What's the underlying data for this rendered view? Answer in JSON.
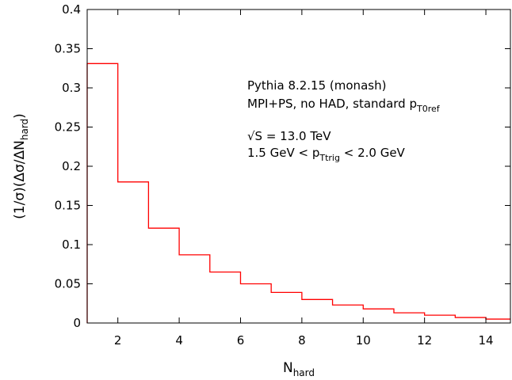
{
  "chart_data": {
    "type": "step",
    "xlabel": {
      "main": "N",
      "sub": "hard"
    },
    "ylabel": {
      "pre": "(1/σ)(Δσ/ΔN",
      "sub": "hard",
      "post": ")"
    },
    "xlim": [
      1,
      14.8
    ],
    "ylim": [
      0,
      0.4
    ],
    "x_ticks": [
      2,
      4,
      6,
      8,
      10,
      12,
      14
    ],
    "y_ticks": [
      0,
      0.05,
      0.1,
      0.15,
      0.2,
      0.25,
      0.3,
      0.35,
      0.4
    ],
    "y_tick_labels": [
      "0",
      "0.05",
      "0.1",
      "0.15",
      "0.2",
      "0.25",
      "0.3",
      "0.35",
      "0.4"
    ],
    "reference_line_y": 0,
    "series": [
      {
        "color": "#ff0000",
        "bin_edges": [
          1,
          2,
          3,
          4,
          5,
          6,
          7,
          8,
          9,
          10,
          11,
          12,
          13,
          14,
          14.8
        ],
        "values": [
          0.331,
          0.18,
          0.121,
          0.087,
          0.065,
          0.05,
          0.039,
          0.03,
          0.023,
          0.018,
          0.013,
          0.01,
          0.007,
          0.005
        ]
      }
    ],
    "annotations": {
      "line1": "Pythia 8.2.15 (monash)",
      "line2_pre": "MPI+PS, no HAD, standard p",
      "line2_sub": "T0ref",
      "line3": "√S = 13.0 TeV",
      "line4_pre": "1.5 GeV < p",
      "line4_sub": "Ttrig",
      "line4_post": " < 2.0 GeV"
    }
  }
}
